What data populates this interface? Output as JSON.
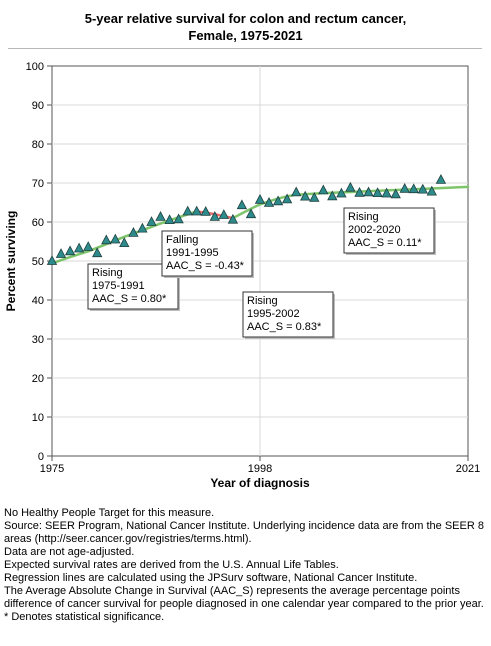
{
  "chart_data": {
    "type": "scatter",
    "title": [
      "5-year relative survival for colon and rectum cancer,",
      "Female,  1975-2021"
    ],
    "xlabel": "Year of diagnosis",
    "ylabel": "Percent surviving",
    "xlim": [
      1975,
      2021
    ],
    "ylim": [
      0,
      100
    ],
    "xticks": [
      1975,
      1998,
      2021
    ],
    "yticks": [
      0,
      10,
      20,
      30,
      40,
      50,
      60,
      70,
      80,
      90,
      100
    ],
    "grid": true,
    "series_observed": {
      "marker": "triangle",
      "color": "#2e8b8b",
      "x": [
        1975,
        1976,
        1977,
        1978,
        1979,
        1980,
        1981,
        1982,
        1983,
        1984,
        1985,
        1986,
        1987,
        1988,
        1989,
        1990,
        1991,
        1992,
        1993,
        1994,
        1995,
        1996,
        1997,
        1998,
        1999,
        2000,
        2001,
        2002,
        2003,
        2004,
        2005,
        2006,
        2007,
        2008,
        2009,
        2010,
        2011,
        2012,
        2013,
        2014,
        2015,
        2016,
        2017,
        2018
      ],
      "y": [
        50.0,
        51.8,
        52.5,
        53.2,
        53.6,
        52.0,
        55.3,
        55.5,
        54.6,
        57.2,
        58.3,
        60.0,
        61.3,
        60.5,
        60.7,
        62.7,
        62.7,
        62.6,
        61.3,
        61.8,
        60.6,
        64.3,
        62.0,
        65.7,
        64.9,
        65.3,
        65.8,
        67.6,
        66.5,
        66.2,
        68.1,
        66.6,
        67.3,
        68.8,
        67.5,
        67.6,
        67.4,
        67.3,
        67.1,
        68.5,
        68.4,
        68.3,
        67.8,
        70.8
      ]
    },
    "trend_segments": [
      {
        "label": "Rising",
        "years": "1975-1991",
        "aac": "AAC_S =  0.80*",
        "color": "#7ec46a",
        "x": [
          1975,
          1977,
          1979,
          1981,
          1983,
          1985,
          1987,
          1989,
          1991
        ],
        "y": [
          49.4,
          51.0,
          52.5,
          54.3,
          56.2,
          57.9,
          59.6,
          61.2,
          62.7
        ]
      },
      {
        "label": "Falling",
        "years": "1991-1995",
        "aac": "AAC_S = -0.43*",
        "color": "#e36b6b",
        "x": [
          1991,
          1992,
          1993,
          1994,
          1995
        ],
        "y": [
          62.7,
          62.4,
          62.0,
          61.5,
          61.0
        ]
      },
      {
        "label": "Rising",
        "years": "1995-2002",
        "aac": "AAC_S =  0.83*",
        "color": "#7ec46a",
        "x": [
          1995,
          1996,
          1997,
          1998,
          1999,
          2000,
          2001,
          2002
        ],
        "y": [
          61.0,
          62.2,
          63.4,
          64.5,
          65.3,
          66.0,
          66.6,
          67.0
        ]
      },
      {
        "label": "Rising",
        "years": "2002-2020",
        "aac": "AAC_S =  0.11*",
        "color": "#7ec46a",
        "x": [
          2002,
          2005,
          2008,
          2011,
          2014,
          2017,
          2020,
          2021
        ],
        "y": [
          67.0,
          67.4,
          67.7,
          68.0,
          68.3,
          68.6,
          68.9,
          69.0
        ]
      }
    ]
  },
  "notes": [
    "No Healthy People Target for this measure.",
    "Source: SEER Program, National Cancer Institute. Underlying incidence data are from the SEER 8 areas (http://seer.cancer.gov/registries/terms.html).",
    "Data are not age-adjusted.",
    "Expected survival rates are derived from the U.S. Annual Life Tables.",
    "Regression lines are calculated using the JPSurv software, National Cancer Institute.",
    "The Average Absolute Change in Survival (AAC_S) represents the average percentage points difference of cancer survival for people diagnosed in one calendar year compared to the prior year.",
    "* Denotes statistical significance."
  ]
}
